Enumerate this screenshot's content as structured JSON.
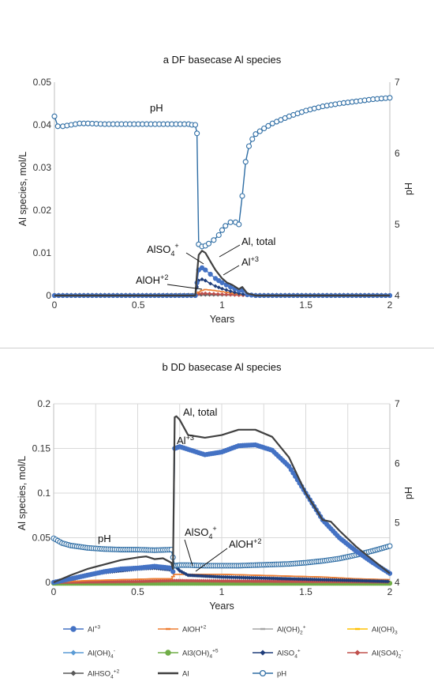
{
  "chart_data": [
    {
      "type": "line",
      "title": "a DF basecase Al species",
      "xlabel": "Years",
      "ylabel": "Al species, mol/L",
      "y2label": "pH",
      "xlim": [
        0,
        2
      ],
      "ylim": [
        0,
        0.05
      ],
      "y2lim": [
        4,
        7
      ],
      "xticks": [
        "0",
        "0.5",
        "1",
        "1.5",
        "2"
      ],
      "yticks": [
        "0",
        "0.01",
        "0.02",
        "0.03",
        "0.04",
        "0.05"
      ],
      "y2ticks": [
        "4",
        "5",
        "6",
        "7"
      ],
      "grid": false,
      "annotations": [
        {
          "text": "pH"
        },
        {
          "text": "AlSO",
          "sub": "4",
          "sup": "+"
        },
        {
          "text": "Al, total"
        },
        {
          "text": "Al",
          "sup": "+3"
        },
        {
          "text": "AlOH",
          "sup": "+2"
        }
      ],
      "series": [
        {
          "name": "pH",
          "axis": "right",
          "color": "#2e6da4",
          "marker": "circle",
          "x": [
            0,
            0.02,
            0.05,
            0.1,
            0.15,
            0.2,
            0.3,
            0.4,
            0.5,
            0.6,
            0.7,
            0.8,
            0.82,
            0.84,
            0.85,
            0.86,
            0.88,
            0.9,
            0.92,
            0.95,
            0.98,
            1.0,
            1.02,
            1.05,
            1.08,
            1.1,
            1.12,
            1.14,
            1.16,
            1.18,
            1.2,
            1.25,
            1.3,
            1.4,
            1.5,
            1.6,
            1.7,
            1.8,
            1.9,
            2.0
          ],
          "y": [
            6.52,
            6.38,
            6.38,
            6.4,
            6.42,
            6.42,
            6.41,
            6.41,
            6.41,
            6.41,
            6.41,
            6.41,
            6.4,
            6.4,
            6.28,
            4.72,
            4.69,
            4.7,
            4.73,
            4.78,
            4.85,
            4.92,
            4.98,
            5.03,
            5.03,
            5.0,
            5.4,
            5.88,
            6.1,
            6.2,
            6.27,
            6.35,
            6.42,
            6.52,
            6.6,
            6.66,
            6.7,
            6.73,
            6.76,
            6.78
          ]
        },
        {
          "name": "Al",
          "axis": "left",
          "color": "#404040",
          "marker": "none",
          "x": [
            0,
            0.5,
            0.84,
            0.85,
            0.86,
            0.88,
            0.9,
            0.93,
            0.96,
            1.0,
            1.03,
            1.06,
            1.08,
            1.1,
            1.12,
            1.15,
            1.2,
            1.5,
            2.0
          ],
          "y": [
            0,
            0,
            0,
            0.005,
            0.0095,
            0.0105,
            0.01,
            0.008,
            0.006,
            0.004,
            0.003,
            0.0025,
            0.002,
            0.0015,
            0.002,
            0.0005,
            0,
            0,
            0
          ]
        },
        {
          "name": "Al+3",
          "axis": "left",
          "color": "#4472c4",
          "marker": "circle",
          "x": [
            0,
            0.5,
            0.84,
            0.85,
            0.86,
            0.88,
            0.9,
            0.93,
            0.96,
            1.0,
            1.05,
            1.1,
            1.12,
            1.15,
            1.2,
            2.0
          ],
          "y": [
            0,
            0,
            0,
            0.003,
            0.006,
            0.0065,
            0.006,
            0.005,
            0.004,
            0.003,
            0.002,
            0.0012,
            0.0012,
            0.0002,
            0,
            0
          ]
        },
        {
          "name": "AlSO4+",
          "axis": "left",
          "color": "#1f3d7a",
          "marker": "diamond",
          "x": [
            0,
            0.5,
            0.84,
            0.85,
            0.86,
            0.88,
            0.9,
            0.93,
            0.96,
            1.0,
            1.05,
            1.1,
            1.15,
            1.2,
            2.0
          ],
          "y": [
            0,
            0,
            0,
            0.002,
            0.0035,
            0.0038,
            0.0035,
            0.0028,
            0.0022,
            0.0016,
            0.001,
            0.0005,
            0.0001,
            0,
            0
          ]
        },
        {
          "name": "AlOH+2",
          "axis": "left",
          "color": "#ed7d31",
          "marker": "dash",
          "x": [
            0,
            0.5,
            0.84,
            0.86,
            0.88,
            0.9,
            0.95,
            1.0,
            1.05,
            1.1,
            1.15,
            1.2,
            2.0
          ],
          "y": [
            0,
            0,
            0,
            0.0008,
            0.0012,
            0.0014,
            0.0012,
            0.0009,
            0.0006,
            0.0003,
            0.0001,
            0,
            0
          ]
        },
        {
          "name": "Al(SO4)2-",
          "axis": "left",
          "color": "#c0504d",
          "marker": "diamond",
          "x": [
            0,
            0.84,
            0.86,
            0.9,
            1.0,
            1.1,
            1.2,
            2.0
          ],
          "y": [
            0,
            0,
            0.0004,
            0.0005,
            0.0003,
            0.0001,
            0,
            0
          ]
        },
        {
          "name": "AlHSO4+2",
          "axis": "left",
          "color": "#595959",
          "marker": "diamond",
          "x": [
            0,
            2.0
          ],
          "y": [
            0.0002,
            0.0002
          ]
        }
      ]
    },
    {
      "type": "line",
      "title": "b DD basecase Al species",
      "xlabel": "Years",
      "ylabel": "Al species, mol/L",
      "y2label": "pH",
      "xlim": [
        0,
        2
      ],
      "ylim": [
        0,
        0.2
      ],
      "y2lim": [
        4,
        7
      ],
      "xticks": [
        "0",
        "0.5",
        "1",
        "1.5",
        "2"
      ],
      "yticks": [
        "0",
        "0.05",
        "0.1",
        "0.15",
        "0.2"
      ],
      "y2ticks": [
        "4",
        "5",
        "6",
        "7"
      ],
      "grid": true,
      "annotations": [
        {
          "text": "Al, total"
        },
        {
          "text": "Al",
          "sup": "+3"
        },
        {
          "text": "pH"
        },
        {
          "text": "AlSO",
          "sub": "4",
          "sup": "+"
        },
        {
          "text": "AlOH",
          "sup": "+2"
        }
      ],
      "series": [
        {
          "name": "Al",
          "axis": "left",
          "color": "#404040",
          "marker": "none",
          "x": [
            0,
            0.1,
            0.2,
            0.3,
            0.4,
            0.5,
            0.55,
            0.6,
            0.65,
            0.7,
            0.71,
            0.72,
            0.73,
            0.75,
            0.8,
            0.9,
            1.0,
            1.1,
            1.2,
            1.3,
            1.4,
            1.5,
            1.55,
            1.6,
            1.65,
            1.7,
            1.8,
            1.9,
            2.0
          ],
          "y": [
            0,
            0.008,
            0.015,
            0.02,
            0.025,
            0.028,
            0.029,
            0.026,
            0.027,
            0.022,
            0.015,
            0.185,
            0.186,
            0.182,
            0.165,
            0.162,
            0.165,
            0.171,
            0.171,
            0.163,
            0.14,
            0.1,
            0.085,
            0.07,
            0.068,
            0.058,
            0.04,
            0.025,
            0.01
          ]
        },
        {
          "name": "Al+3",
          "axis": "left",
          "color": "#4472c4",
          "marker": "circle",
          "x": [
            0,
            0.1,
            0.2,
            0.3,
            0.4,
            0.5,
            0.6,
            0.65,
            0.7,
            0.71,
            0.72,
            0.75,
            0.8,
            0.9,
            1.0,
            1.1,
            1.2,
            1.3,
            1.4,
            1.5,
            1.6,
            1.7,
            1.8,
            1.9,
            2.0
          ],
          "y": [
            0,
            0.004,
            0.008,
            0.012,
            0.015,
            0.016,
            0.018,
            0.017,
            0.016,
            0.012,
            0.15,
            0.152,
            0.149,
            0.143,
            0.146,
            0.153,
            0.154,
            0.148,
            0.13,
            0.1,
            0.07,
            0.05,
            0.035,
            0.022,
            0.01
          ]
        },
        {
          "name": "pH",
          "axis": "right",
          "color": "#2e6da4",
          "marker": "circle",
          "x": [
            0,
            0.05,
            0.1,
            0.2,
            0.3,
            0.4,
            0.5,
            0.6,
            0.7,
            0.71,
            0.72,
            0.75,
            0.8,
            0.9,
            1.0,
            1.1,
            1.2,
            1.3,
            1.4,
            1.5,
            1.6,
            1.7,
            1.8,
            1.9,
            2.0
          ],
          "y": [
            4.74,
            4.66,
            4.62,
            4.58,
            4.56,
            4.55,
            4.55,
            4.54,
            4.55,
            4.42,
            4.28,
            4.29,
            4.29,
            4.28,
            4.28,
            4.28,
            4.29,
            4.3,
            4.31,
            4.33,
            4.36,
            4.4,
            4.46,
            4.53,
            4.61
          ]
        },
        {
          "name": "AlSO4+",
          "axis": "left",
          "color": "#1f3d7a",
          "marker": "diamond",
          "x": [
            0,
            0.1,
            0.2,
            0.3,
            0.4,
            0.5,
            0.6,
            0.7,
            0.72,
            0.75,
            0.8,
            1.0,
            1.2,
            1.4,
            1.6,
            1.8,
            2.0
          ],
          "y": [
            0,
            0.004,
            0.008,
            0.011,
            0.013,
            0.015,
            0.016,
            0.014,
            0.019,
            0.013,
            0.008,
            0.006,
            0.005,
            0.004,
            0.003,
            0.002,
            0.001
          ]
        },
        {
          "name": "AlOH+2",
          "axis": "left",
          "color": "#ed7d31",
          "marker": "dash",
          "x": [
            0,
            0.2,
            0.4,
            0.6,
            0.7,
            0.72,
            0.8,
            1.0,
            1.2,
            1.4,
            1.6,
            1.8,
            2.0
          ],
          "y": [
            0,
            0.002,
            0.003,
            0.004,
            0.004,
            0.009,
            0.009,
            0.009,
            0.008,
            0.007,
            0.006,
            0.004,
            0.003
          ]
        },
        {
          "name": "Al(SO4)2-",
          "axis": "left",
          "color": "#c0504d",
          "marker": "diamond",
          "x": [
            0,
            0.5,
            0.72,
            1.0,
            1.5,
            2.0
          ],
          "y": [
            0,
            0.001,
            0.002,
            0.0015,
            0.001,
            0.0005
          ]
        },
        {
          "name": "Al3(OH)4+5",
          "axis": "left",
          "color": "#70ad47",
          "marker": "circle",
          "x": [
            0,
            2.0
          ],
          "y": [
            -0.001,
            -0.001
          ]
        }
      ]
    }
  ],
  "legend": {
    "placement": "bottom",
    "items": [
      {
        "base": "Al",
        "sup": "+3",
        "sub": "",
        "sup2": "",
        "color": "#4472c4",
        "marker": "circle",
        "line": "thin"
      },
      {
        "base": "AlOH",
        "sup": "+2",
        "sub": "",
        "sup2": "",
        "color": "#ed7d31",
        "marker": "dash",
        "line": "thin"
      },
      {
        "base": "Al(OH)",
        "sup": "",
        "sub": "2",
        "sup2": "+",
        "color": "#a5a5a5",
        "marker": "dash",
        "line": "thin"
      },
      {
        "base": "Al(OH)",
        "sup": "",
        "sub": "3",
        "sup2": "",
        "color": "#ffc000",
        "marker": "dash",
        "line": "thin"
      },
      {
        "base": "Al(OH)",
        "sup": "",
        "sub": "4",
        "sup2": "-",
        "color": "#5b9bd5",
        "marker": "diamond",
        "line": "thin"
      },
      {
        "base": "Al3(OH)",
        "sup": "",
        "sub": "4",
        "sup2": "+5",
        "color": "#70ad47",
        "marker": "circle",
        "line": "thin"
      },
      {
        "base": "AlSO",
        "sup": "",
        "sub": "4",
        "sup2": "+",
        "color": "#1f3d7a",
        "marker": "diamond",
        "line": "thin"
      },
      {
        "base": "Al(SO4)",
        "sup": "",
        "sub": "2",
        "sup2": "-",
        "color": "#c0504d",
        "marker": "diamond",
        "line": "thin"
      },
      {
        "base": "AlHSO",
        "sup": "",
        "sub": "4",
        "sup2": "+2",
        "color": "#595959",
        "marker": "diamond",
        "line": "thin"
      },
      {
        "base": "Al",
        "sup": "",
        "sub": "",
        "sup2": "",
        "color": "#404040",
        "marker": "none",
        "line": "thick"
      },
      {
        "base": "pH",
        "sup": "",
        "sub": "",
        "sup2": "",
        "color": "#2e6da4",
        "marker": "ring",
        "line": "thin"
      }
    ]
  }
}
